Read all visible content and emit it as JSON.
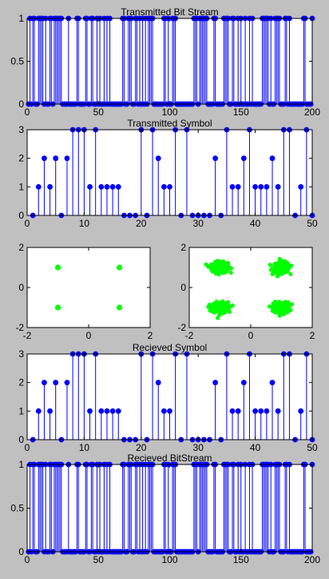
{
  "colors": {
    "background": "#c0c0c0",
    "stem": "#0000ff",
    "scatter": "#00ff00",
    "axes": "#000000"
  },
  "chart_data": [
    {
      "type": "stem",
      "title": "Transmitted Bit Stream",
      "xlim": [
        0,
        200
      ],
      "ylim": [
        0,
        1
      ],
      "xticks": [
        0,
        50,
        100,
        150,
        200
      ],
      "yticks": [
        0,
        0.5,
        1
      ],
      "values": [
        0,
        1,
        0,
        1,
        1,
        0,
        0,
        1,
        1,
        1,
        1,
        0,
        1,
        0,
        0,
        1,
        1,
        0,
        1,
        1,
        1,
        1,
        1,
        1,
        0,
        0,
        0,
        0,
        1,
        0,
        0,
        0,
        0,
        0,
        1,
        1,
        0,
        0,
        0,
        0,
        1,
        1,
        0,
        0,
        1,
        1,
        0,
        0,
        1,
        0,
        1,
        0,
        0,
        1,
        0,
        1,
        0,
        1,
        0,
        0,
        0,
        0,
        0,
        0,
        0,
        0,
        1,
        1,
        0,
        0,
        1,
        1,
        1,
        0,
        0,
        1,
        1,
        0,
        1,
        0,
        1,
        0,
        1,
        0,
        1,
        1,
        1,
        1,
        0,
        0,
        0,
        0,
        0,
        0,
        0,
        1,
        1,
        0,
        1,
        0,
        0,
        1,
        1,
        1,
        0,
        0,
        0,
        0,
        0,
        0,
        0,
        0,
        0,
        0,
        0,
        0,
        1,
        1,
        1,
        0,
        1,
        1,
        1,
        1,
        1,
        1,
        0,
        0,
        0,
        0,
        1,
        1,
        0,
        0,
        0,
        0,
        0,
        1,
        1,
        1,
        1,
        0,
        0,
        1,
        1,
        0,
        0,
        1,
        0,
        1,
        0,
        0,
        1,
        0,
        0,
        1,
        0,
        1,
        0,
        0,
        0,
        0,
        0,
        0,
        1,
        1,
        1,
        1,
        1,
        0,
        1,
        0,
        0,
        1,
        1,
        1,
        1,
        0,
        0,
        0,
        1,
        1,
        0,
        1,
        0,
        0,
        0,
        0,
        0,
        0,
        0,
        0,
        0,
        1,
        1,
        0,
        0,
        0,
        0,
        1
      ]
    },
    {
      "type": "stem",
      "title": "Transmitted Symbol",
      "xlim": [
        0,
        50
      ],
      "ylim": [
        0,
        3
      ],
      "xticks": [
        0,
        10,
        20,
        30,
        40,
        50
      ],
      "yticks": [
        0,
        1,
        2,
        3
      ],
      "values": [
        0,
        1,
        2,
        1,
        2,
        0,
        2,
        3,
        3,
        3,
        1,
        3,
        1,
        1,
        1,
        1,
        0,
        0,
        0,
        3,
        0,
        3,
        2,
        1,
        1,
        3,
        0,
        3,
        0,
        0,
        0,
        0,
        2,
        0,
        3,
        1,
        1,
        2,
        3,
        1,
        1,
        1,
        2,
        1,
        3,
        3,
        0,
        1,
        3,
        0
      ]
    },
    {
      "type": "scatter",
      "title": "",
      "xlim": [
        -2,
        2
      ],
      "ylim": [
        -2,
        2
      ],
      "xticks": [
        -2,
        0,
        2
      ],
      "yticks": [
        -2,
        0,
        2
      ],
      "points": [
        [
          -1,
          1
        ],
        [
          1,
          1
        ],
        [
          -1,
          -1
        ],
        [
          1,
          -1
        ]
      ]
    },
    {
      "type": "scatter",
      "title": "",
      "noisy": true,
      "xlim": [
        -2,
        2
      ],
      "ylim": [
        -2,
        2
      ],
      "xticks": [
        -2,
        0,
        2
      ],
      "yticks": [
        -2,
        0,
        2
      ],
      "points": [
        [
          -1,
          1
        ],
        [
          1,
          1
        ],
        [
          -1,
          -1
        ],
        [
          1,
          -1
        ]
      ]
    },
    {
      "type": "stem",
      "title": "Recieved Symbol",
      "xlim": [
        0,
        50
      ],
      "ylim": [
        0,
        3
      ],
      "xticks": [
        0,
        10,
        20,
        30,
        40,
        50
      ],
      "yticks": [
        0,
        1,
        2,
        3
      ],
      "values": [
        0,
        1,
        2,
        1,
        2,
        0,
        2,
        3,
        3,
        3,
        1,
        3,
        1,
        1,
        1,
        1,
        0,
        0,
        0,
        3,
        0,
        3,
        2,
        1,
        1,
        3,
        0,
        3,
        0,
        0,
        0,
        0,
        2,
        0,
        3,
        1,
        1,
        2,
        3,
        1,
        1,
        1,
        2,
        1,
        3,
        3,
        0,
        1,
        3,
        0
      ]
    },
    {
      "type": "stem",
      "title": "Recieved BitStream",
      "xlim": [
        0,
        200
      ],
      "ylim": [
        0,
        1
      ],
      "xticks": [
        0,
        50,
        100,
        150,
        200
      ],
      "yticks": [
        0,
        0.5,
        1
      ],
      "values": [
        0,
        1,
        0,
        1,
        1,
        0,
        0,
        1,
        1,
        1,
        1,
        0,
        1,
        0,
        0,
        1,
        1,
        0,
        1,
        1,
        1,
        1,
        1,
        1,
        0,
        0,
        0,
        0,
        1,
        0,
        0,
        0,
        0,
        0,
        1,
        1,
        0,
        0,
        0,
        0,
        1,
        1,
        0,
        0,
        1,
        1,
        0,
        0,
        1,
        0,
        1,
        0,
        0,
        1,
        0,
        1,
        0,
        1,
        0,
        0,
        0,
        0,
        0,
        0,
        0,
        0,
        1,
        1,
        0,
        0,
        1,
        1,
        1,
        0,
        0,
        1,
        1,
        0,
        1,
        0,
        1,
        0,
        1,
        0,
        1,
        1,
        1,
        1,
        0,
        0,
        0,
        0,
        0,
        0,
        0,
        1,
        1,
        0,
        1,
        0,
        0,
        1,
        1,
        1,
        0,
        0,
        0,
        0,
        0,
        0,
        0,
        0,
        0,
        0,
        0,
        0,
        1,
        1,
        1,
        0,
        1,
        1,
        1,
        1,
        1,
        1,
        0,
        0,
        0,
        0,
        1,
        1,
        0,
        0,
        0,
        0,
        0,
        1,
        1,
        1,
        1,
        0,
        0,
        1,
        1,
        0,
        0,
        1,
        0,
        1,
        0,
        0,
        1,
        0,
        0,
        1,
        0,
        1,
        0,
        0,
        0,
        0,
        0,
        0,
        1,
        1,
        1,
        1,
        1,
        0,
        1,
        0,
        0,
        1,
        1,
        1,
        1,
        0,
        0,
        0,
        1,
        1,
        0,
        1,
        0,
        0,
        0,
        0,
        0,
        0,
        0,
        0,
        0,
        1,
        1,
        0,
        0,
        0,
        0,
        1
      ]
    }
  ]
}
